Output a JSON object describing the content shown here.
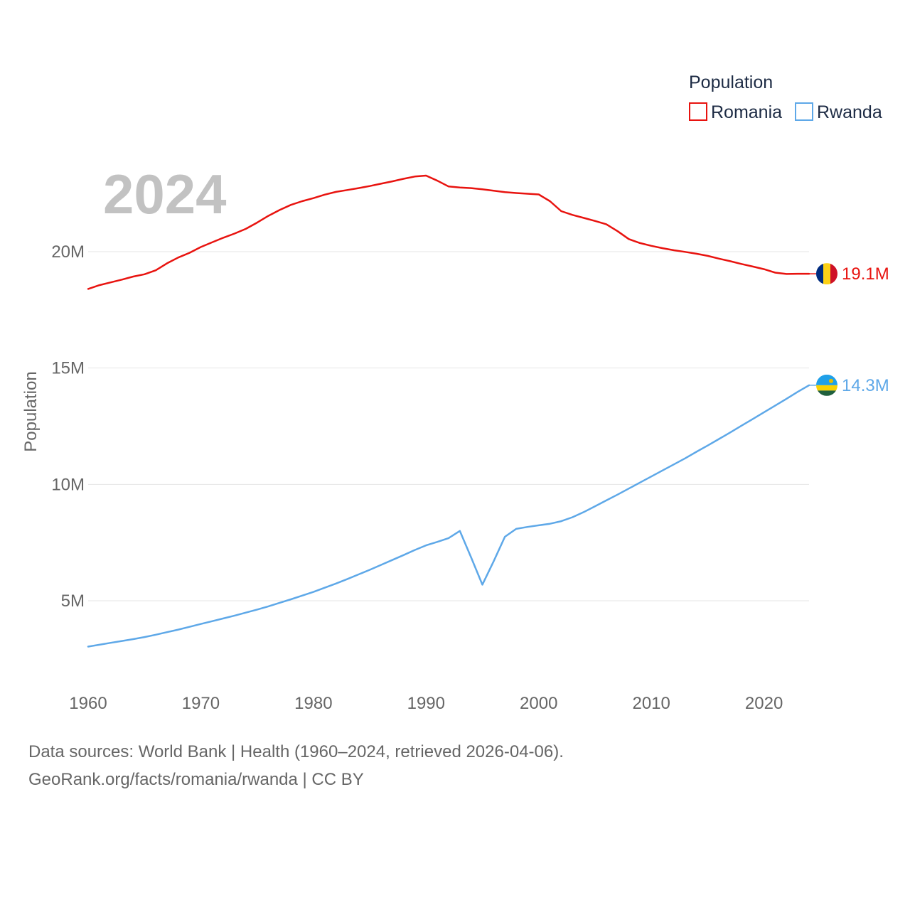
{
  "chart_data": {
    "type": "line",
    "title": "",
    "ylabel": "Population",
    "xlabel": "",
    "watermark_year": "2024",
    "ylim": [
      1800000,
      24500000
    ],
    "xlim": [
      1960,
      2024
    ],
    "yticks": [
      {
        "value": 5000000,
        "label": "5M"
      },
      {
        "value": 10000000,
        "label": "10M"
      },
      {
        "value": 15000000,
        "label": "15M"
      },
      {
        "value": 20000000,
        "label": "20M"
      }
    ],
    "xticks": [
      {
        "value": 1960,
        "label": "1960"
      },
      {
        "value": 1970,
        "label": "1970"
      },
      {
        "value": 1980,
        "label": "1980"
      },
      {
        "value": 1990,
        "label": "1990"
      },
      {
        "value": 2000,
        "label": "2000"
      },
      {
        "value": 2010,
        "label": "2010"
      },
      {
        "value": 2020,
        "label": "2020"
      }
    ],
    "legend": {
      "title": "Population",
      "position": "top-right"
    },
    "series": [
      {
        "name": "Romania",
        "color": "#e8130f",
        "end_label": "19.1M",
        "flag": "flag-romania",
        "x": [
          1960,
          1961,
          1962,
          1963,
          1964,
          1965,
          1966,
          1967,
          1968,
          1969,
          1970,
          1971,
          1972,
          1973,
          1974,
          1975,
          1976,
          1977,
          1978,
          1979,
          1980,
          1981,
          1982,
          1983,
          1984,
          1985,
          1986,
          1987,
          1988,
          1989,
          1990,
          1991,
          1992,
          1993,
          1994,
          1995,
          1996,
          1997,
          1998,
          1999,
          2000,
          2001,
          2002,
          2003,
          2004,
          2005,
          2006,
          2007,
          2008,
          2009,
          2010,
          2011,
          2012,
          2013,
          2014,
          2015,
          2016,
          2017,
          2018,
          2019,
          2020,
          2021,
          2022,
          2023,
          2024
        ],
        "values": [
          18400000,
          18560000,
          18680000,
          18800000,
          18930000,
          19030000,
          19200000,
          19500000,
          19750000,
          19950000,
          20200000,
          20400000,
          20600000,
          20780000,
          20980000,
          21250000,
          21540000,
          21790000,
          22010000,
          22170000,
          22300000,
          22450000,
          22570000,
          22650000,
          22730000,
          22820000,
          22920000,
          23020000,
          23130000,
          23230000,
          23270000,
          23050000,
          22800000,
          22760000,
          22730000,
          22680000,
          22620000,
          22560000,
          22520000,
          22490000,
          22460000,
          22170000,
          21740000,
          21580000,
          21450000,
          21320000,
          21180000,
          20880000,
          20540000,
          20370000,
          20250000,
          20150000,
          20060000,
          19990000,
          19910000,
          19820000,
          19700000,
          19590000,
          19470000,
          19360000,
          19250000,
          19100000,
          19040000,
          19050000,
          19050000
        ]
      },
      {
        "name": "Rwanda",
        "color": "#5ea8e8",
        "end_label": "14.3M",
        "flag": "flag-rwanda",
        "x": [
          1960,
          1961,
          1962,
          1963,
          1964,
          1965,
          1966,
          1967,
          1968,
          1969,
          1970,
          1971,
          1972,
          1973,
          1974,
          1975,
          1976,
          1977,
          1978,
          1979,
          1980,
          1981,
          1982,
          1983,
          1984,
          1985,
          1986,
          1987,
          1988,
          1989,
          1990,
          1991,
          1992,
          1993,
          1994,
          1995,
          1996,
          1997,
          1998,
          1999,
          2000,
          2001,
          2002,
          2003,
          2004,
          2005,
          2006,
          2007,
          2008,
          2009,
          2010,
          2011,
          2012,
          2013,
          2014,
          2015,
          2016,
          2017,
          2018,
          2019,
          2020,
          2021,
          2022,
          2023,
          2024
        ],
        "values": [
          3030000,
          3110000,
          3190000,
          3270000,
          3350000,
          3440000,
          3540000,
          3650000,
          3760000,
          3880000,
          4000000,
          4120000,
          4240000,
          4360000,
          4490000,
          4620000,
          4760000,
          4910000,
          5060000,
          5220000,
          5380000,
          5560000,
          5740000,
          5930000,
          6130000,
          6330000,
          6540000,
          6750000,
          6960000,
          7180000,
          7380000,
          7530000,
          7690000,
          8000000,
          6860000,
          5690000,
          6700000,
          7750000,
          8090000,
          8170000,
          8240000,
          8310000,
          8420000,
          8590000,
          8810000,
          9060000,
          9310000,
          9560000,
          9820000,
          10080000,
          10340000,
          10600000,
          10860000,
          11120000,
          11400000,
          11670000,
          11950000,
          12230000,
          12520000,
          12810000,
          13100000,
          13390000,
          13680000,
          13980000,
          14260000
        ]
      }
    ]
  },
  "footer": {
    "line1": "Data sources: World Bank | Health (1960–2024, retrieved 2026-04-06).",
    "line2": "GeoRank.org/facts/romania/rwanda | CC BY"
  }
}
